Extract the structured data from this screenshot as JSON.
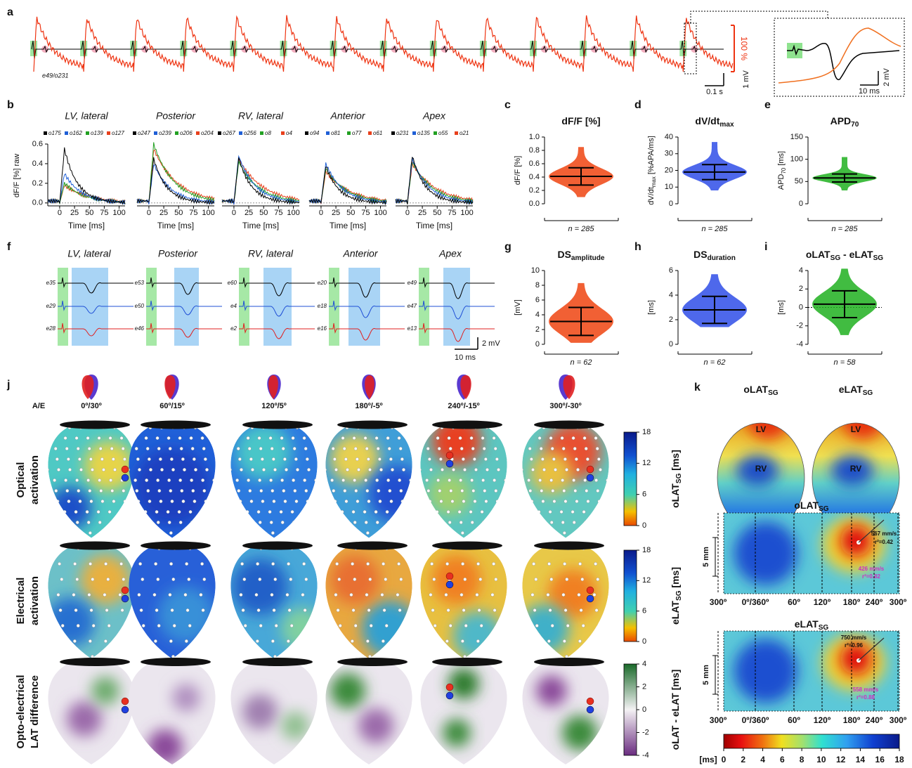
{
  "panel_labels": [
    "a",
    "b",
    "c",
    "d",
    "e",
    "f",
    "g",
    "h",
    "i",
    "j",
    "k"
  ],
  "a": {
    "trace_id": "e49/o231",
    "scale_percent": "100 %",
    "scale_mv": "1 mV",
    "scale_time": "0.1 s",
    "inset_mv": "2 mV",
    "inset_time": "10 ms"
  },
  "b": {
    "ylabel": "dF/F [%] raw",
    "xlabel": "Time [ms]",
    "xlim": [
      -20,
      110
    ],
    "xticks": [
      0,
      25,
      50,
      75,
      100
    ],
    "ylim": [
      -0.03,
      0.6
    ],
    "yticks": [
      {
        "value": 0,
        "label": "0.0"
      },
      {
        "value": 0.2,
        "label": "0.2"
      },
      {
        "value": 0.4,
        "label": "0.4"
      },
      {
        "value": 0.6,
        "label": "0.6"
      }
    ],
    "legend_colors": [
      "#000000",
      "#1f5fd6",
      "#22a022",
      "#e8401c"
    ],
    "regions": [
      {
        "title": "LV, lateral",
        "legend": [
          "o175",
          "o162",
          "o139",
          "o127"
        ]
      },
      {
        "title": "Posterior",
        "legend": [
          "o247",
          "o239",
          "o206",
          "o204"
        ]
      },
      {
        "title": "RV, lateral",
        "legend": [
          "o267",
          "o256",
          "o8",
          "o4"
        ]
      },
      {
        "title": "Anterior",
        "legend": [
          "o94",
          "o81",
          "o77",
          "o61"
        ]
      },
      {
        "title": "Apex",
        "legend": [
          "o231",
          "o135",
          "o55",
          "o21"
        ]
      }
    ]
  },
  "stats": [
    {
      "title": [
        {
          "t": "dF/F [%]"
        }
      ],
      "ylabel": [
        {
          "t": "dF/F [%]"
        }
      ],
      "ylim": [
        0,
        1
      ],
      "yticks": [
        {
          "value": 0,
          "label": "0.0"
        },
        {
          "value": 0.2,
          "label": "0.2"
        },
        {
          "value": 0.4,
          "label": "0.4"
        },
        {
          "value": 0.6,
          "label": "0.6"
        },
        {
          "value": 0.8,
          "label": "0.8"
        },
        {
          "value": 1,
          "label": "1.0"
        }
      ],
      "n": "n = 285",
      "color": "#ee4411",
      "mean": 0.41,
      "sd": 0.13,
      "range": [
        0.1,
        0.85
      ],
      "zero_line": false
    },
    {
      "title": [
        {
          "t": "dV/dt"
        },
        {
          "t": "max",
          "sub": true
        }
      ],
      "ylabel": [
        {
          "t": "dV/dt"
        },
        {
          "t": "max",
          "sub": true
        },
        {
          "t": " [%APA/ms]"
        }
      ],
      "ylim": [
        0,
        40
      ],
      "yticks": [
        0,
        10,
        20,
        30,
        40
      ],
      "n": "n = 285",
      "color": "#2f4ee8",
      "mean": 19,
      "sd": 4.5,
      "range": [
        8,
        37
      ],
      "zero_line": false
    },
    {
      "title": [
        {
          "t": "APD"
        },
        {
          "t": "70",
          "sub": true
        }
      ],
      "ylabel": [
        {
          "t": "APD"
        },
        {
          "t": "70",
          "sub": true
        },
        {
          "t": " [ms]"
        }
      ],
      "ylim": [
        0,
        150
      ],
      "yticks": [
        0,
        50,
        100,
        150
      ],
      "n": "n = 285",
      "color": "#20b020",
      "mean": 58,
      "sd": 9,
      "range": [
        30,
        105
      ],
      "zero_line": false
    },
    {
      "title": [
        {
          "t": "DS"
        },
        {
          "t": "amplitude",
          "sub": true
        }
      ],
      "ylabel": [
        {
          "t": "[mV]"
        }
      ],
      "ylim": [
        0,
        10
      ],
      "yticks": [
        0,
        2,
        4,
        6,
        8,
        10
      ],
      "n": "n = 62",
      "color": "#ee4411",
      "mean": 3.1,
      "sd": 1.9,
      "range": [
        0.2,
        8.3
      ],
      "zero_line": false
    },
    {
      "title": [
        {
          "t": "DS"
        },
        {
          "t": "duration",
          "sub": true
        }
      ],
      "ylabel": [
        {
          "t": "[ms]"
        }
      ],
      "ylim": [
        0,
        6
      ],
      "yticks": [
        0,
        2,
        4,
        6
      ],
      "n": "n = 62",
      "color": "#2f4ee8",
      "mean": 2.8,
      "sd": 1.1,
      "range": [
        1.4,
        5.7
      ],
      "zero_line": false
    },
    {
      "title": [
        {
          "t": "oLAT"
        },
        {
          "t": "SG",
          "sub": true
        },
        {
          "t": " - eLAT"
        },
        {
          "t": "SG",
          "sub": true
        }
      ],
      "ylabel": [
        {
          "t": "[ms]"
        }
      ],
      "ylim": [
        -4,
        4
      ],
      "yticks": [
        -4,
        -2,
        0,
        2,
        4
      ],
      "n": "n = 58",
      "color": "#20b020",
      "mean": 0.35,
      "sd": 1.45,
      "range": [
        -3,
        4.2
      ],
      "zero_line": true
    }
  ],
  "f": {
    "regions": [
      {
        "title": "LV, lateral",
        "electrodes": [
          "e35",
          "e29",
          "e28"
        ]
      },
      {
        "title": "Posterior",
        "electrodes": [
          "e53",
          "e50",
          "e46"
        ]
      },
      {
        "title": "RV, lateral",
        "electrodes": [
          "e60",
          "e4",
          "e2"
        ]
      },
      {
        "title": "Anterior",
        "electrodes": [
          "e20",
          "e18",
          "e16"
        ]
      },
      {
        "title": "Apex",
        "electrodes": [
          "e49",
          "e47",
          "e13"
        ]
      }
    ],
    "scale_time": "10 ms",
    "scale_mv": "2 mV"
  },
  "j": {
    "angle_header": "A/E",
    "angles": [
      "0º/30º",
      "60º/15º",
      "120º/5º",
      "180º/-5º",
      "240º/-15º",
      "300º/-30º"
    ],
    "rows": [
      [
        "Optical",
        "activation"
      ],
      [
        "Electrical",
        "activation"
      ],
      [
        "Opto-electrical",
        "LAT difference"
      ]
    ],
    "colorbars": [
      {
        "label": [
          {
            "t": "oLAT"
          },
          {
            "t": "SG",
            "sub": true
          },
          {
            "t": " [ms]"
          }
        ],
        "lim": [
          0,
          18
        ],
        "ticks": [
          0,
          6,
          12,
          18
        ],
        "palette": "jet"
      },
      {
        "label": [
          {
            "t": "eLAT"
          },
          {
            "t": "SG",
            "sub": true
          },
          {
            "t": " [ms]"
          }
        ],
        "lim": [
          0,
          18
        ],
        "ticks": [
          0,
          6,
          12,
          18
        ],
        "palette": "jet"
      },
      {
        "label": [
          {
            "t": "oLAT - eLAT [ms]"
          }
        ],
        "lim": [
          -4,
          4
        ],
        "ticks": [
          -4,
          -2,
          0,
          2,
          4
        ],
        "palette": "diverging"
      }
    ]
  },
  "k": {
    "top_titles": [
      [
        {
          "t": "oLAT"
        },
        {
          "t": "SG",
          "sub": true
        }
      ],
      [
        {
          "t": "eLAT"
        },
        {
          "t": "SG",
          "sub": true
        }
      ]
    ],
    "chamber_labels": [
      "LV",
      "RV"
    ],
    "maps": [
      {
        "title": [
          {
            "t": "oLAT"
          },
          {
            "t": "SG",
            "sub": true
          }
        ],
        "annotations": [
          "567 mm/s",
          "r²=0.42",
          "426 mm/s",
          "r²=0.82"
        ]
      },
      {
        "title": [
          {
            "t": "eLAT"
          },
          {
            "t": "SG",
            "sub": true
          }
        ],
        "annotations": [
          "750 mm/s",
          "r²=0.96",
          "558 mm/s",
          "r²=0.88"
        ]
      }
    ],
    "x_labels": [
      "300º",
      "0º/360º",
      "60º",
      "120º",
      "180º",
      "240º",
      "300º"
    ],
    "scale": "5 mm",
    "colorbar": {
      "unit": "[ms]",
      "lim": [
        0,
        18
      ],
      "ticks": [
        0,
        2,
        4,
        6,
        8,
        10,
        12,
        14,
        16,
        18
      ]
    }
  }
}
